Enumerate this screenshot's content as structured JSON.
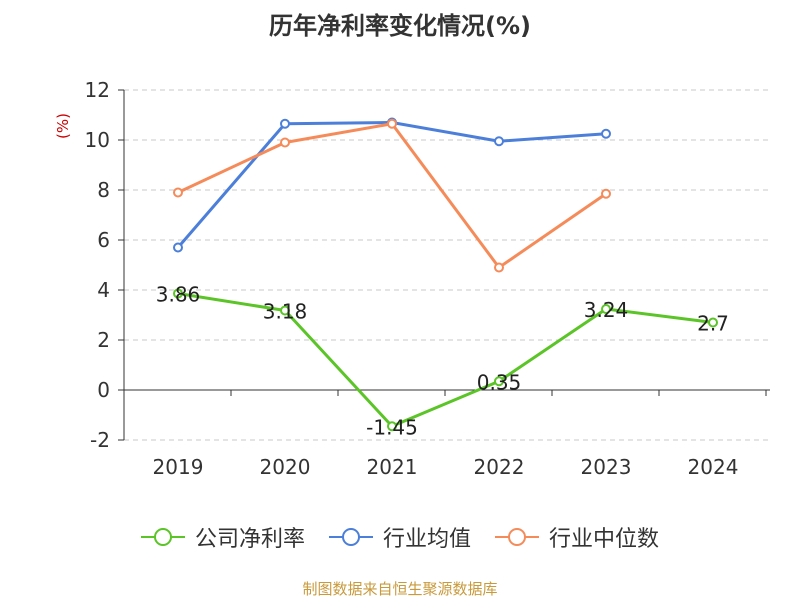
{
  "title": "历年净利率变化情况(%)",
  "footer": "制图数据来自恒生聚源数据库",
  "colors": {
    "company": "#5bc427",
    "industry_avg": "#4c7fda",
    "industry_median": "#f68b5a",
    "ylabel": "#cc0000"
  },
  "chart_data": {
    "type": "line",
    "categories": [
      "2019",
      "2020",
      "2021",
      "2022",
      "2023",
      "2024"
    ],
    "ylabel": "(%)",
    "ylim": [
      -2,
      12
    ],
    "yticks": [
      -2,
      0,
      2,
      4,
      6,
      8,
      10,
      12
    ],
    "grid": true,
    "legend_position": "bottom",
    "series": [
      {
        "name": "公司净利率",
        "color": "#5bc427",
        "values": [
          3.86,
          3.18,
          -1.45,
          0.35,
          3.24,
          2.7
        ],
        "labels": [
          "3.86",
          "3.18",
          "-1.45",
          "0.35",
          "3.24",
          "2.7"
        ]
      },
      {
        "name": "行业均值",
        "color": "#4c7fda",
        "values": [
          5.7,
          10.65,
          10.7,
          9.95,
          10.25,
          null
        ]
      },
      {
        "name": "行业中位数",
        "color": "#f68b5a",
        "values": [
          7.9,
          9.9,
          10.65,
          4.9,
          7.85,
          null
        ]
      }
    ]
  }
}
